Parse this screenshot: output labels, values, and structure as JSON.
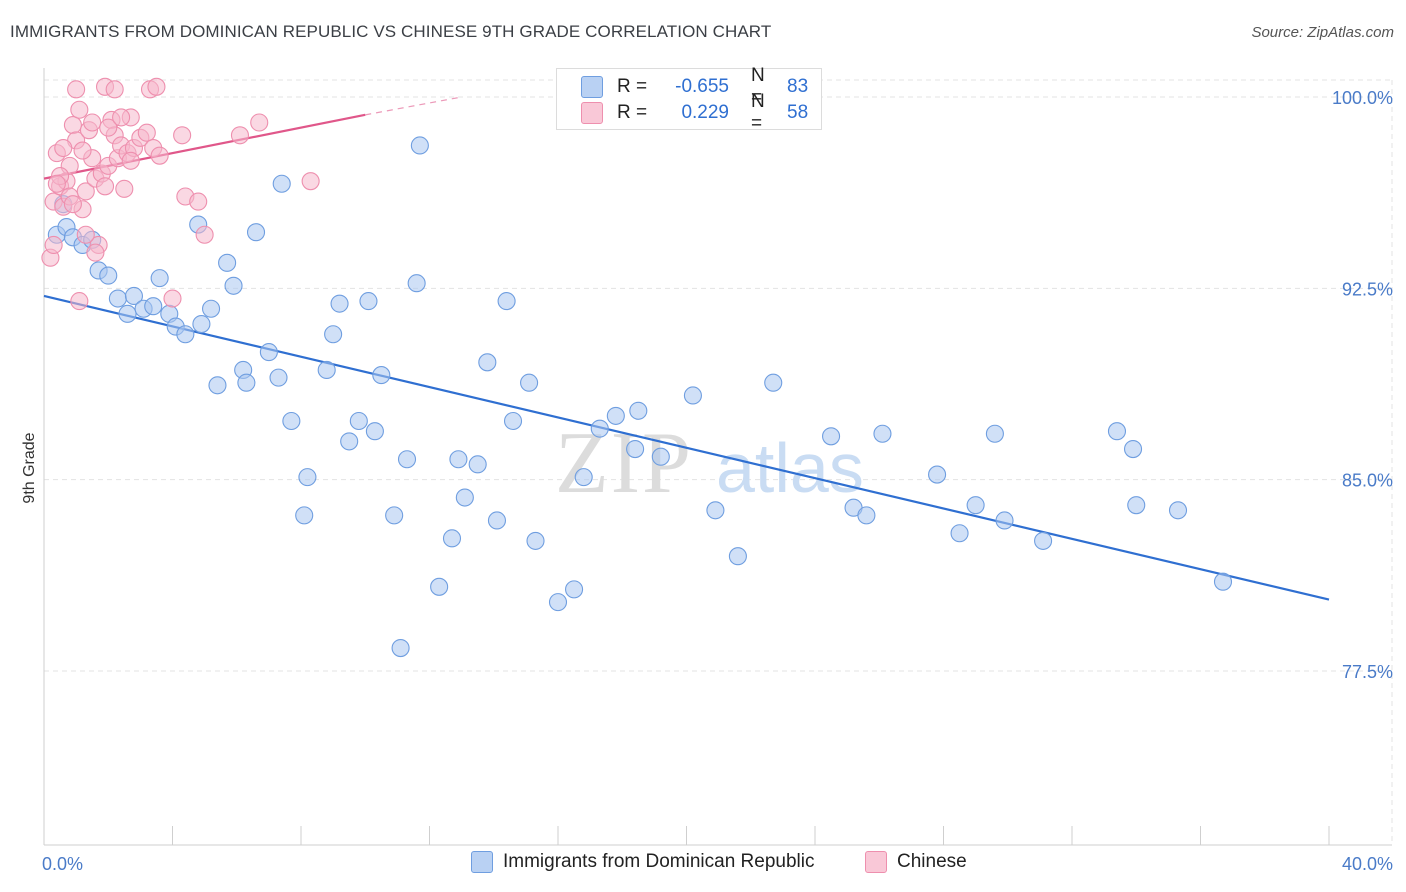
{
  "title": "IMMIGRANTS FROM DOMINICAN REPUBLIC VS CHINESE 9TH GRADE CORRELATION CHART",
  "source": "Source: ZipAtlas.com",
  "watermark": {
    "zip": "ZIP",
    "atlas": "atlas"
  },
  "colors": {
    "blue_fill": "#a9c7f0",
    "blue_stroke": "#6f9ee0",
    "blue_line": "#2f6fd1",
    "pink_fill": "#f6b8cc",
    "pink_stroke": "#ee8fae",
    "pink_line": "#e0578a",
    "axis_label": "#4a7bc8",
    "grid": "#e3e3e3"
  },
  "legend": {
    "rows": [
      {
        "r_label": "R =",
        "r_value": "-0.655",
        "n_label": "N =",
        "n_value": "83",
        "color": "blue"
      },
      {
        "r_label": "R =",
        "r_value": "0.229",
        "n_label": "N =",
        "n_value": "58",
        "color": "pink"
      }
    ]
  },
  "bottom_legend": [
    "Immigrants from Dominican Republic",
    "Chinese"
  ],
  "chart_data": {
    "type": "scatter",
    "title": "IMMIGRANTS FROM DOMINICAN REPUBLIC VS CHINESE 9TH GRADE CORRELATION CHART",
    "xlabel": "",
    "ylabel": "9th Grade",
    "xlim": [
      0,
      40
    ],
    "ylim": [
      71.5,
      101.5
    ],
    "x_tick_labels": [
      "0.0%",
      "40.0%"
    ],
    "y_ticks": [
      77.5,
      85.0,
      92.5,
      100.0
    ],
    "y_tick_labels": [
      "77.5%",
      "85.0%",
      "92.5%",
      "100.0%"
    ],
    "grid": true,
    "legend_position": "top-center",
    "series": [
      {
        "name": "Immigrants from Dominican Republic",
        "color": "blue",
        "trend": {
          "x": [
            0,
            40
          ],
          "y": [
            92.2,
            80.3
          ]
        },
        "points": [
          [
            0.4,
            94.6
          ],
          [
            0.6,
            95.8
          ],
          [
            0.7,
            94.9
          ],
          [
            0.9,
            94.5
          ],
          [
            1.2,
            94.2
          ],
          [
            1.5,
            94.4
          ],
          [
            1.7,
            93.2
          ],
          [
            2.0,
            93.0
          ],
          [
            2.3,
            92.1
          ],
          [
            2.6,
            91.5
          ],
          [
            2.8,
            92.2
          ],
          [
            3.1,
            91.7
          ],
          [
            3.4,
            91.8
          ],
          [
            3.6,
            92.9
          ],
          [
            3.9,
            91.5
          ],
          [
            4.1,
            91.0
          ],
          [
            4.4,
            90.7
          ],
          [
            4.8,
            95.0
          ],
          [
            4.9,
            91.1
          ],
          [
            5.2,
            91.7
          ],
          [
            5.4,
            88.7
          ],
          [
            5.7,
            93.5
          ],
          [
            5.9,
            92.6
          ],
          [
            6.2,
            89.3
          ],
          [
            6.3,
            88.8
          ],
          [
            6.6,
            94.7
          ],
          [
            7.0,
            90.0
          ],
          [
            7.3,
            89.0
          ],
          [
            7.4,
            96.6
          ],
          [
            7.7,
            87.3
          ],
          [
            8.2,
            85.1
          ],
          [
            8.1,
            83.6
          ],
          [
            8.8,
            89.3
          ],
          [
            9.0,
            90.7
          ],
          [
            9.2,
            91.9
          ],
          [
            9.5,
            86.5
          ],
          [
            9.8,
            87.3
          ],
          [
            10.1,
            92.0
          ],
          [
            10.3,
            86.9
          ],
          [
            10.5,
            89.1
          ],
          [
            10.9,
            83.6
          ],
          [
            11.3,
            85.8
          ],
          [
            11.1,
            78.4
          ],
          [
            11.6,
            92.7
          ],
          [
            11.7,
            98.1
          ],
          [
            12.3,
            80.8
          ],
          [
            12.7,
            82.7
          ],
          [
            12.9,
            85.8
          ],
          [
            13.1,
            84.3
          ],
          [
            13.5,
            85.6
          ],
          [
            13.8,
            89.6
          ],
          [
            14.4,
            92.0
          ],
          [
            14.1,
            83.4
          ],
          [
            14.6,
            87.3
          ],
          [
            15.1,
            88.8
          ],
          [
            15.3,
            82.6
          ],
          [
            16.0,
            80.2
          ],
          [
            16.5,
            80.7
          ],
          [
            16.8,
            85.1
          ],
          [
            17.3,
            87.0
          ],
          [
            17.8,
            87.5
          ],
          [
            18.4,
            86.2
          ],
          [
            18.5,
            87.7
          ],
          [
            19.2,
            85.9
          ],
          [
            20.2,
            88.3
          ],
          [
            20.9,
            83.8
          ],
          [
            21.6,
            82.0
          ],
          [
            22.7,
            88.8
          ],
          [
            24.5,
            86.7
          ],
          [
            25.2,
            83.9
          ],
          [
            25.6,
            83.6
          ],
          [
            26.1,
            86.8
          ],
          [
            27.8,
            85.2
          ],
          [
            28.5,
            82.9
          ],
          [
            29.0,
            84.0
          ],
          [
            29.6,
            86.8
          ],
          [
            29.9,
            83.4
          ],
          [
            31.1,
            82.6
          ],
          [
            33.4,
            86.9
          ],
          [
            33.9,
            86.2
          ],
          [
            34.0,
            84.0
          ],
          [
            35.3,
            83.8
          ],
          [
            36.7,
            81.0
          ]
        ]
      },
      {
        "name": "Chinese",
        "color": "pink",
        "trend": {
          "x": [
            0,
            10
          ],
          "y": [
            96.8,
            99.3
          ]
        },
        "trend_dashed": {
          "x": [
            10,
            13
          ],
          "y": [
            99.3,
            100.0
          ]
        },
        "points": [
          [
            0.2,
            93.7
          ],
          [
            0.3,
            95.9
          ],
          [
            0.4,
            97.8
          ],
          [
            0.5,
            96.5
          ],
          [
            0.6,
            95.7
          ],
          [
            0.7,
            96.7
          ],
          [
            0.8,
            97.3
          ],
          [
            0.9,
            98.9
          ],
          [
            1.0,
            98.3
          ],
          [
            1.1,
            92.0
          ],
          [
            1.2,
            95.6
          ],
          [
            1.3,
            96.3
          ],
          [
            1.4,
            98.7
          ],
          [
            1.5,
            99.0
          ],
          [
            1.6,
            96.8
          ],
          [
            1.7,
            94.2
          ],
          [
            1.8,
            97.0
          ],
          [
            1.9,
            96.5
          ],
          [
            2.0,
            97.3
          ],
          [
            2.1,
            99.1
          ],
          [
            2.2,
            98.5
          ],
          [
            2.3,
            97.6
          ],
          [
            2.4,
            98.1
          ],
          [
            2.5,
            96.4
          ],
          [
            2.6,
            97.8
          ],
          [
            2.7,
            99.2
          ],
          [
            1.0,
            100.3
          ],
          [
            1.9,
            100.4
          ],
          [
            2.2,
            100.3
          ],
          [
            3.3,
            100.3
          ],
          [
            3.5,
            100.4
          ],
          [
            0.5,
            96.9
          ],
          [
            2.8,
            98.0
          ],
          [
            3.0,
            98.4
          ],
          [
            3.2,
            98.6
          ],
          [
            3.4,
            98.0
          ],
          [
            3.6,
            97.7
          ],
          [
            4.3,
            98.5
          ],
          [
            4.4,
            96.1
          ],
          [
            4.8,
            95.9
          ],
          [
            5.0,
            94.6
          ],
          [
            4.0,
            92.1
          ],
          [
            6.1,
            98.5
          ],
          [
            6.7,
            99.0
          ],
          [
            8.3,
            96.7
          ],
          [
            1.1,
            99.5
          ],
          [
            0.6,
            98.0
          ],
          [
            0.8,
            96.1
          ],
          [
            1.3,
            94.6
          ],
          [
            1.6,
            93.9
          ],
          [
            0.3,
            94.2
          ],
          [
            0.4,
            96.6
          ],
          [
            1.5,
            97.6
          ],
          [
            2.0,
            98.8
          ],
          [
            2.4,
            99.2
          ],
          [
            0.9,
            95.8
          ],
          [
            1.2,
            97.9
          ],
          [
            2.7,
            97.5
          ]
        ]
      }
    ]
  }
}
